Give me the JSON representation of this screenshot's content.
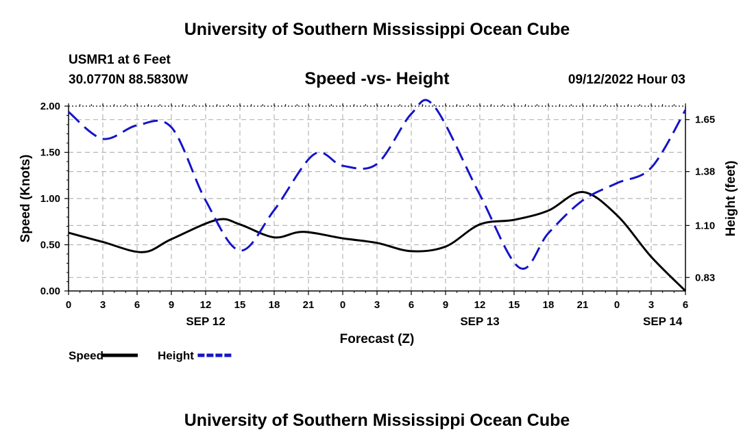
{
  "header": {
    "title": "University of Southern Mississippi Ocean Cube",
    "station": "USMR1 at 6 Feet",
    "coordinates": "30.0770N  88.5830W",
    "date": "09/12/2022 Hour 03"
  },
  "footer": {
    "title": "University of Southern Mississippi Ocean Cube"
  },
  "chart_data": {
    "type": "line",
    "title": "Speed -vs- Height",
    "xlabel": "Forecast (Z)",
    "ylabel": "Speed (Knots)",
    "y2label": "Height (feet)",
    "x_ticks": [
      "0",
      "3",
      "6",
      "9",
      "12",
      "15",
      "18",
      "21",
      "0",
      "3",
      "6",
      "9",
      "12",
      "15",
      "18",
      "21",
      "0",
      "3",
      "6"
    ],
    "date_labels": [
      {
        "label": "SEP 12",
        "at_hour": 12
      },
      {
        "label": "SEP 13",
        "at_hour": 36
      },
      {
        "label": "SEP 14",
        "at_hour": 52
      }
    ],
    "xlim": [
      0,
      54
    ],
    "ylim": [
      0,
      2.0
    ],
    "y_ticks": [
      "0.00",
      "0.50",
      "1.00",
      "1.50",
      "2.00"
    ],
    "y2lim": [
      0.76,
      1.72
    ],
    "y2_ticks": [
      "0.83",
      "1.10",
      "1.38",
      "1.65"
    ],
    "grid": true,
    "series": [
      {
        "name": "Speed",
        "axis": "left",
        "color": "#000000",
        "dash": "solid",
        "x": [
          0,
          3,
          6.5,
          9,
          13,
          15,
          18,
          20.5,
          24,
          27,
          30,
          33,
          36,
          39,
          42,
          45,
          48,
          51,
          54
        ],
        "values": [
          0.63,
          0.53,
          0.42,
          0.56,
          0.77,
          0.72,
          0.58,
          0.64,
          0.57,
          0.52,
          0.43,
          0.48,
          0.72,
          0.77,
          0.87,
          1.07,
          0.82,
          0.37,
          0.0
        ]
      },
      {
        "name": "Height",
        "axis": "right",
        "color": "#1414c8",
        "dash": "dashed",
        "x": [
          0,
          3,
          6,
          9,
          12,
          15,
          18,
          21.5,
          24,
          27,
          30,
          32,
          36,
          39.5,
          42,
          45,
          48,
          51,
          54
        ],
        "values": [
          1.69,
          1.55,
          1.62,
          1.61,
          1.23,
          0.97,
          1.18,
          1.47,
          1.41,
          1.42,
          1.68,
          1.72,
          1.26,
          0.88,
          1.06,
          1.23,
          1.32,
          1.4,
          1.7
        ]
      }
    ],
    "legend": {
      "position": "bottom-left",
      "entries": [
        "Speed",
        "Height"
      ]
    }
  }
}
